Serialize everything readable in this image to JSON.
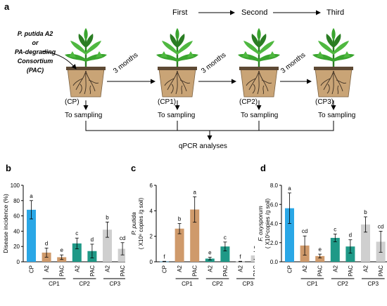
{
  "panel_a": {
    "label": "a",
    "source_line1": "P. putida A2",
    "source_line2": "or",
    "source_line3": "PA-degrading",
    "source_line4": "Consortium",
    "source_line5": "(PAC)",
    "stage_first": "First",
    "stage_second": "Second",
    "stage_third": "Third",
    "interval": "3 months",
    "pots": [
      {
        "code": "(CP)",
        "sampling": "To sampling"
      },
      {
        "code": "(CP1)",
        "sampling": "To sampling"
      },
      {
        "code": "(CP2)",
        "sampling": "To sampling"
      },
      {
        "code": "(CP3)",
        "sampling": "To sampling"
      }
    ],
    "analysis": "qPCR analyses"
  },
  "chart_data": [
    {
      "panel": "b",
      "type": "bar",
      "ylabel": "Disease incidence (%)",
      "ylim": [
        0,
        100
      ],
      "yticks": [
        "0",
        "20",
        "40",
        "60",
        "80",
        "100"
      ],
      "categories": [
        "CP",
        "A2",
        "PAC",
        "A2",
        "PAC",
        "A2",
        "PAC"
      ],
      "groups": [
        "CP1",
        "CP2",
        "CP3"
      ],
      "values": [
        68,
        12,
        6,
        24,
        14,
        42,
        17
      ],
      "errors": [
        12,
        6,
        3,
        7,
        9,
        10,
        8
      ],
      "letters": [
        "a",
        "d",
        "e",
        "c",
        "d",
        "b",
        "cd"
      ],
      "colors": [
        "#2aa7e6",
        "#cf9a6b",
        "#cf9a6b",
        "#1f9987",
        "#1f9987",
        "#cfcfcf",
        "#cfcfcf"
      ]
    },
    {
      "panel": "c",
      "type": "bar",
      "ylabel_species": "P. putida",
      "ylabel_units": "( X10⁶ copies /g soil)",
      "ylim": [
        0,
        6
      ],
      "yticks": [
        "0",
        "2",
        "4",
        "6"
      ],
      "categories": [
        "CP",
        "A2",
        "PAC",
        "A2",
        "PAC",
        "A2",
        "PAC"
      ],
      "groups": [
        "CP1",
        "CP2",
        "CP3"
      ],
      "values": [
        0.02,
        2.6,
        4.1,
        0.25,
        1.2,
        0.02,
        0.5
      ],
      "errors": [
        0.02,
        0.4,
        1.0,
        0.1,
        0.35,
        0.02,
        0.3
      ],
      "letters": [
        "f",
        "b",
        "a",
        "e",
        "c",
        "f",
        "d"
      ],
      "colors": [
        "#2aa7e6",
        "#cf9a6b",
        "#cf9a6b",
        "#1f9987",
        "#1f9987",
        "#cfcfcf",
        "#cfcfcf"
      ]
    },
    {
      "panel": "d",
      "type": "bar",
      "ylabel_species": "F. oxysporum",
      "ylabel_units": "( X10⁵copies /g soil)",
      "ylim": [
        0,
        8
      ],
      "yticks": [
        "0.0",
        "2.0",
        "4.0",
        "6.0",
        "8.0"
      ],
      "categories": [
        "CP",
        "A2",
        "PAC",
        "A2",
        "PAC",
        "A2",
        "PAC"
      ],
      "groups": [
        "CP1",
        "CP2",
        "CP3"
      ],
      "values": [
        5.6,
        1.7,
        0.6,
        2.5,
        1.6,
        3.9,
        2.1
      ],
      "errors": [
        1.6,
        1.0,
        0.2,
        0.4,
        0.7,
        0.8,
        1.1
      ],
      "letters": [
        "a",
        "cd",
        "e",
        "c",
        "d",
        "b",
        "cd"
      ],
      "colors": [
        "#2aa7e6",
        "#cf9a6b",
        "#cf9a6b",
        "#1f9987",
        "#1f9987",
        "#cfcfcf",
        "#cfcfcf"
      ]
    }
  ],
  "panel_labels": [
    "b",
    "c",
    "d"
  ],
  "colors": {
    "pot": "#c9a476",
    "pot_rim": "#5e4934",
    "leaf": "#3aa52f",
    "leaf_dark": "#2a7d23",
    "root": "#3d2f22"
  }
}
